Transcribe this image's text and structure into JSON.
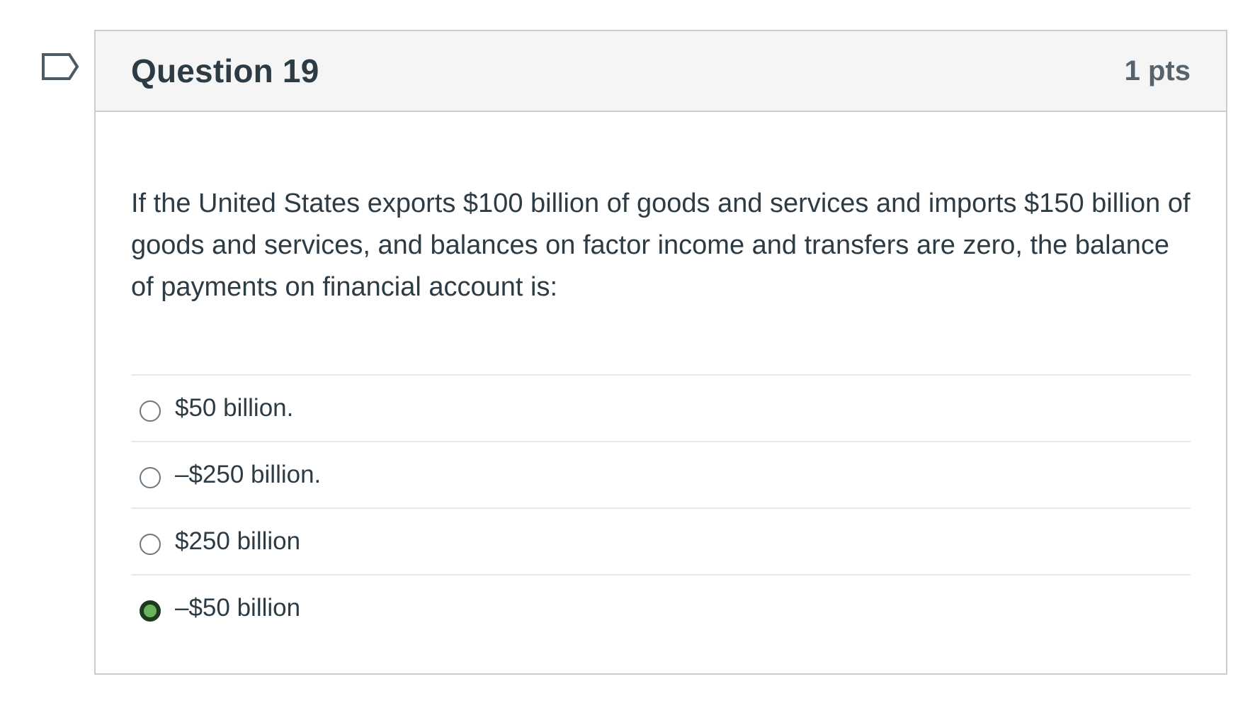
{
  "question": {
    "title": "Question 19",
    "points": "1 pts",
    "text": "If the United States exports $100 billion of goods and services and imports $150 billion of goods and services, and balances on factor income and transfers are zero, the balance of payments on financial account is:",
    "answers": [
      {
        "label": "$50 billion.",
        "selected": false
      },
      {
        "label": "–$250 billion.",
        "selected": false
      },
      {
        "label": "$250 billion",
        "selected": false
      },
      {
        "label": "–$50 billion",
        "selected": true
      }
    ]
  },
  "colors": {
    "selected_radio": "#6bb35a",
    "border": "#c7cdd1",
    "header_bg": "#f5f5f5",
    "text": "#2d3b45"
  },
  "icons": {
    "flag": "flag-question-icon"
  }
}
